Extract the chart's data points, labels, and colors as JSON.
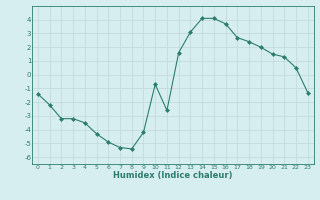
{
  "x": [
    0,
    1,
    2,
    3,
    4,
    5,
    6,
    7,
    8,
    9,
    10,
    11,
    12,
    13,
    14,
    15,
    16,
    17,
    18,
    19,
    20,
    21,
    22,
    23
  ],
  "y": [
    -1.4,
    -2.2,
    -3.2,
    -3.2,
    -3.5,
    -4.3,
    -4.9,
    -5.3,
    -5.4,
    -4.2,
    -0.7,
    -2.6,
    1.6,
    3.1,
    4.1,
    4.1,
    3.7,
    2.7,
    2.4,
    2.0,
    1.5,
    1.3,
    0.5,
    -1.3
  ],
  "xlabel": "Humidex (Indice chaleur)",
  "ylim": [
    -6.5,
    5.0
  ],
  "xlim": [
    -0.5,
    23.5
  ],
  "yticks": [
    -6,
    -5,
    -4,
    -3,
    -2,
    -1,
    0,
    1,
    2,
    3,
    4
  ],
  "xticks": [
    0,
    1,
    2,
    3,
    4,
    5,
    6,
    7,
    8,
    9,
    10,
    11,
    12,
    13,
    14,
    15,
    16,
    17,
    18,
    19,
    20,
    21,
    22,
    23
  ],
  "line_color": "#2d7d6e",
  "marker": "D",
  "marker_size": 2.0,
  "bg_color": "#d6eef0",
  "grid_color": "#c0d8da",
  "tick_color": "#2d7d6e",
  "label_color": "#2d7d6e"
}
